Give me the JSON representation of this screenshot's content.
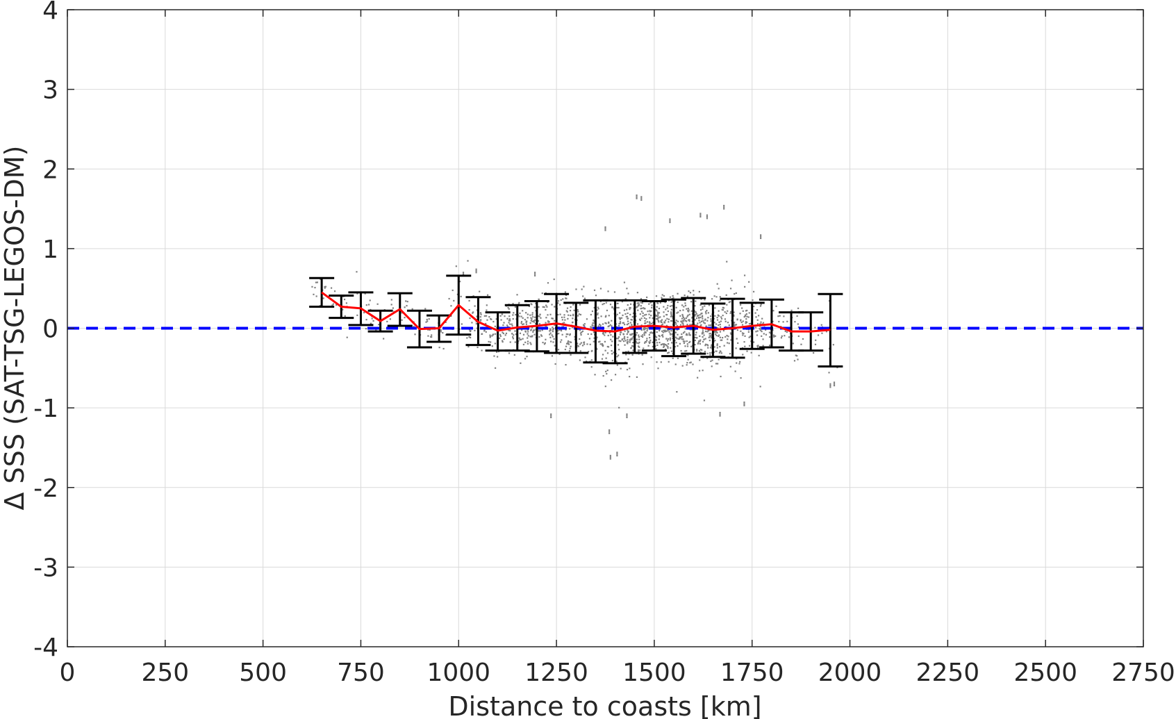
{
  "chart_data": {
    "type": "scatter",
    "title": "",
    "xlabel": "Distance to coasts [km]",
    "ylabel": "Δ SSS (SAT-TSG-LEGOS-DM)",
    "xlim": [
      0,
      2750
    ],
    "ylim": [
      -4,
      4
    ],
    "xticks": [
      0,
      250,
      500,
      750,
      1000,
      1250,
      1500,
      1750,
      2000,
      2250,
      2500,
      2750
    ],
    "yticks": [
      -4,
      -3,
      -2,
      -1,
      0,
      1,
      2,
      3,
      4
    ],
    "grid": true,
    "colors": {
      "scatter": "#808080",
      "mean_line": "#ff0000",
      "errorbars": "#000000",
      "zero_line": "#0000ff",
      "grid": "#d9d9d9",
      "axis": "#262626"
    },
    "zero_line": {
      "y": 0,
      "style": "dashed"
    },
    "binned": {
      "x": [
        650,
        700,
        750,
        800,
        850,
        900,
        950,
        1000,
        1050,
        1100,
        1150,
        1200,
        1250,
        1300,
        1350,
        1400,
        1450,
        1500,
        1550,
        1600,
        1650,
        1700,
        1750,
        1800,
        1850,
        1900,
        1950
      ],
      "mean": [
        0.45,
        0.27,
        0.25,
        0.09,
        0.24,
        -0.01,
        0.0,
        0.29,
        0.08,
        -0.03,
        0.01,
        0.03,
        0.06,
        0.02,
        -0.03,
        -0.04,
        0.02,
        0.03,
        0.01,
        0.03,
        -0.02,
        0.0,
        0.03,
        0.05,
        -0.04,
        -0.04,
        -0.02
      ],
      "lower": [
        0.27,
        0.13,
        0.04,
        -0.04,
        0.03,
        -0.24,
        -0.17,
        -0.08,
        -0.21,
        -0.28,
        -0.28,
        -0.29,
        -0.31,
        -0.31,
        -0.43,
        -0.44,
        -0.31,
        -0.28,
        -0.35,
        -0.32,
        -0.36,
        -0.37,
        -0.26,
        -0.24,
        -0.28,
        -0.28,
        -0.48
      ],
      "upper": [
        0.63,
        0.41,
        0.45,
        0.22,
        0.44,
        0.22,
        0.16,
        0.66,
        0.39,
        0.2,
        0.29,
        0.34,
        0.43,
        0.32,
        0.35,
        0.35,
        0.35,
        0.34,
        0.36,
        0.38,
        0.31,
        0.37,
        0.32,
        0.36,
        0.2,
        0.2,
        0.43
      ]
    },
    "scatter_outliers": [
      {
        "x": 1455,
        "y": 1.65
      },
      {
        "x": 1467,
        "y": 1.63
      },
      {
        "x": 1678,
        "y": 1.52
      },
      {
        "x": 1375,
        "y": 1.25
      },
      {
        "x": 1540,
        "y": 1.35
      },
      {
        "x": 1618,
        "y": 1.42
      },
      {
        "x": 1635,
        "y": 1.4
      },
      {
        "x": 1772,
        "y": 1.15
      },
      {
        "x": 1236,
        "y": -1.1
      },
      {
        "x": 1385,
        "y": -1.3
      },
      {
        "x": 1388,
        "y": -1.62
      },
      {
        "x": 1405,
        "y": -1.58
      },
      {
        "x": 1430,
        "y": -1.1
      },
      {
        "x": 1668,
        "y": -1.08
      },
      {
        "x": 1950,
        "y": -0.72
      },
      {
        "x": 1960,
        "y": -0.7
      },
      {
        "x": 1730,
        "y": -0.95
      },
      {
        "x": 1195,
        "y": 0.68
      },
      {
        "x": 1012,
        "y": 0.68
      },
      {
        "x": 1045,
        "y": 0.72
      }
    ]
  }
}
